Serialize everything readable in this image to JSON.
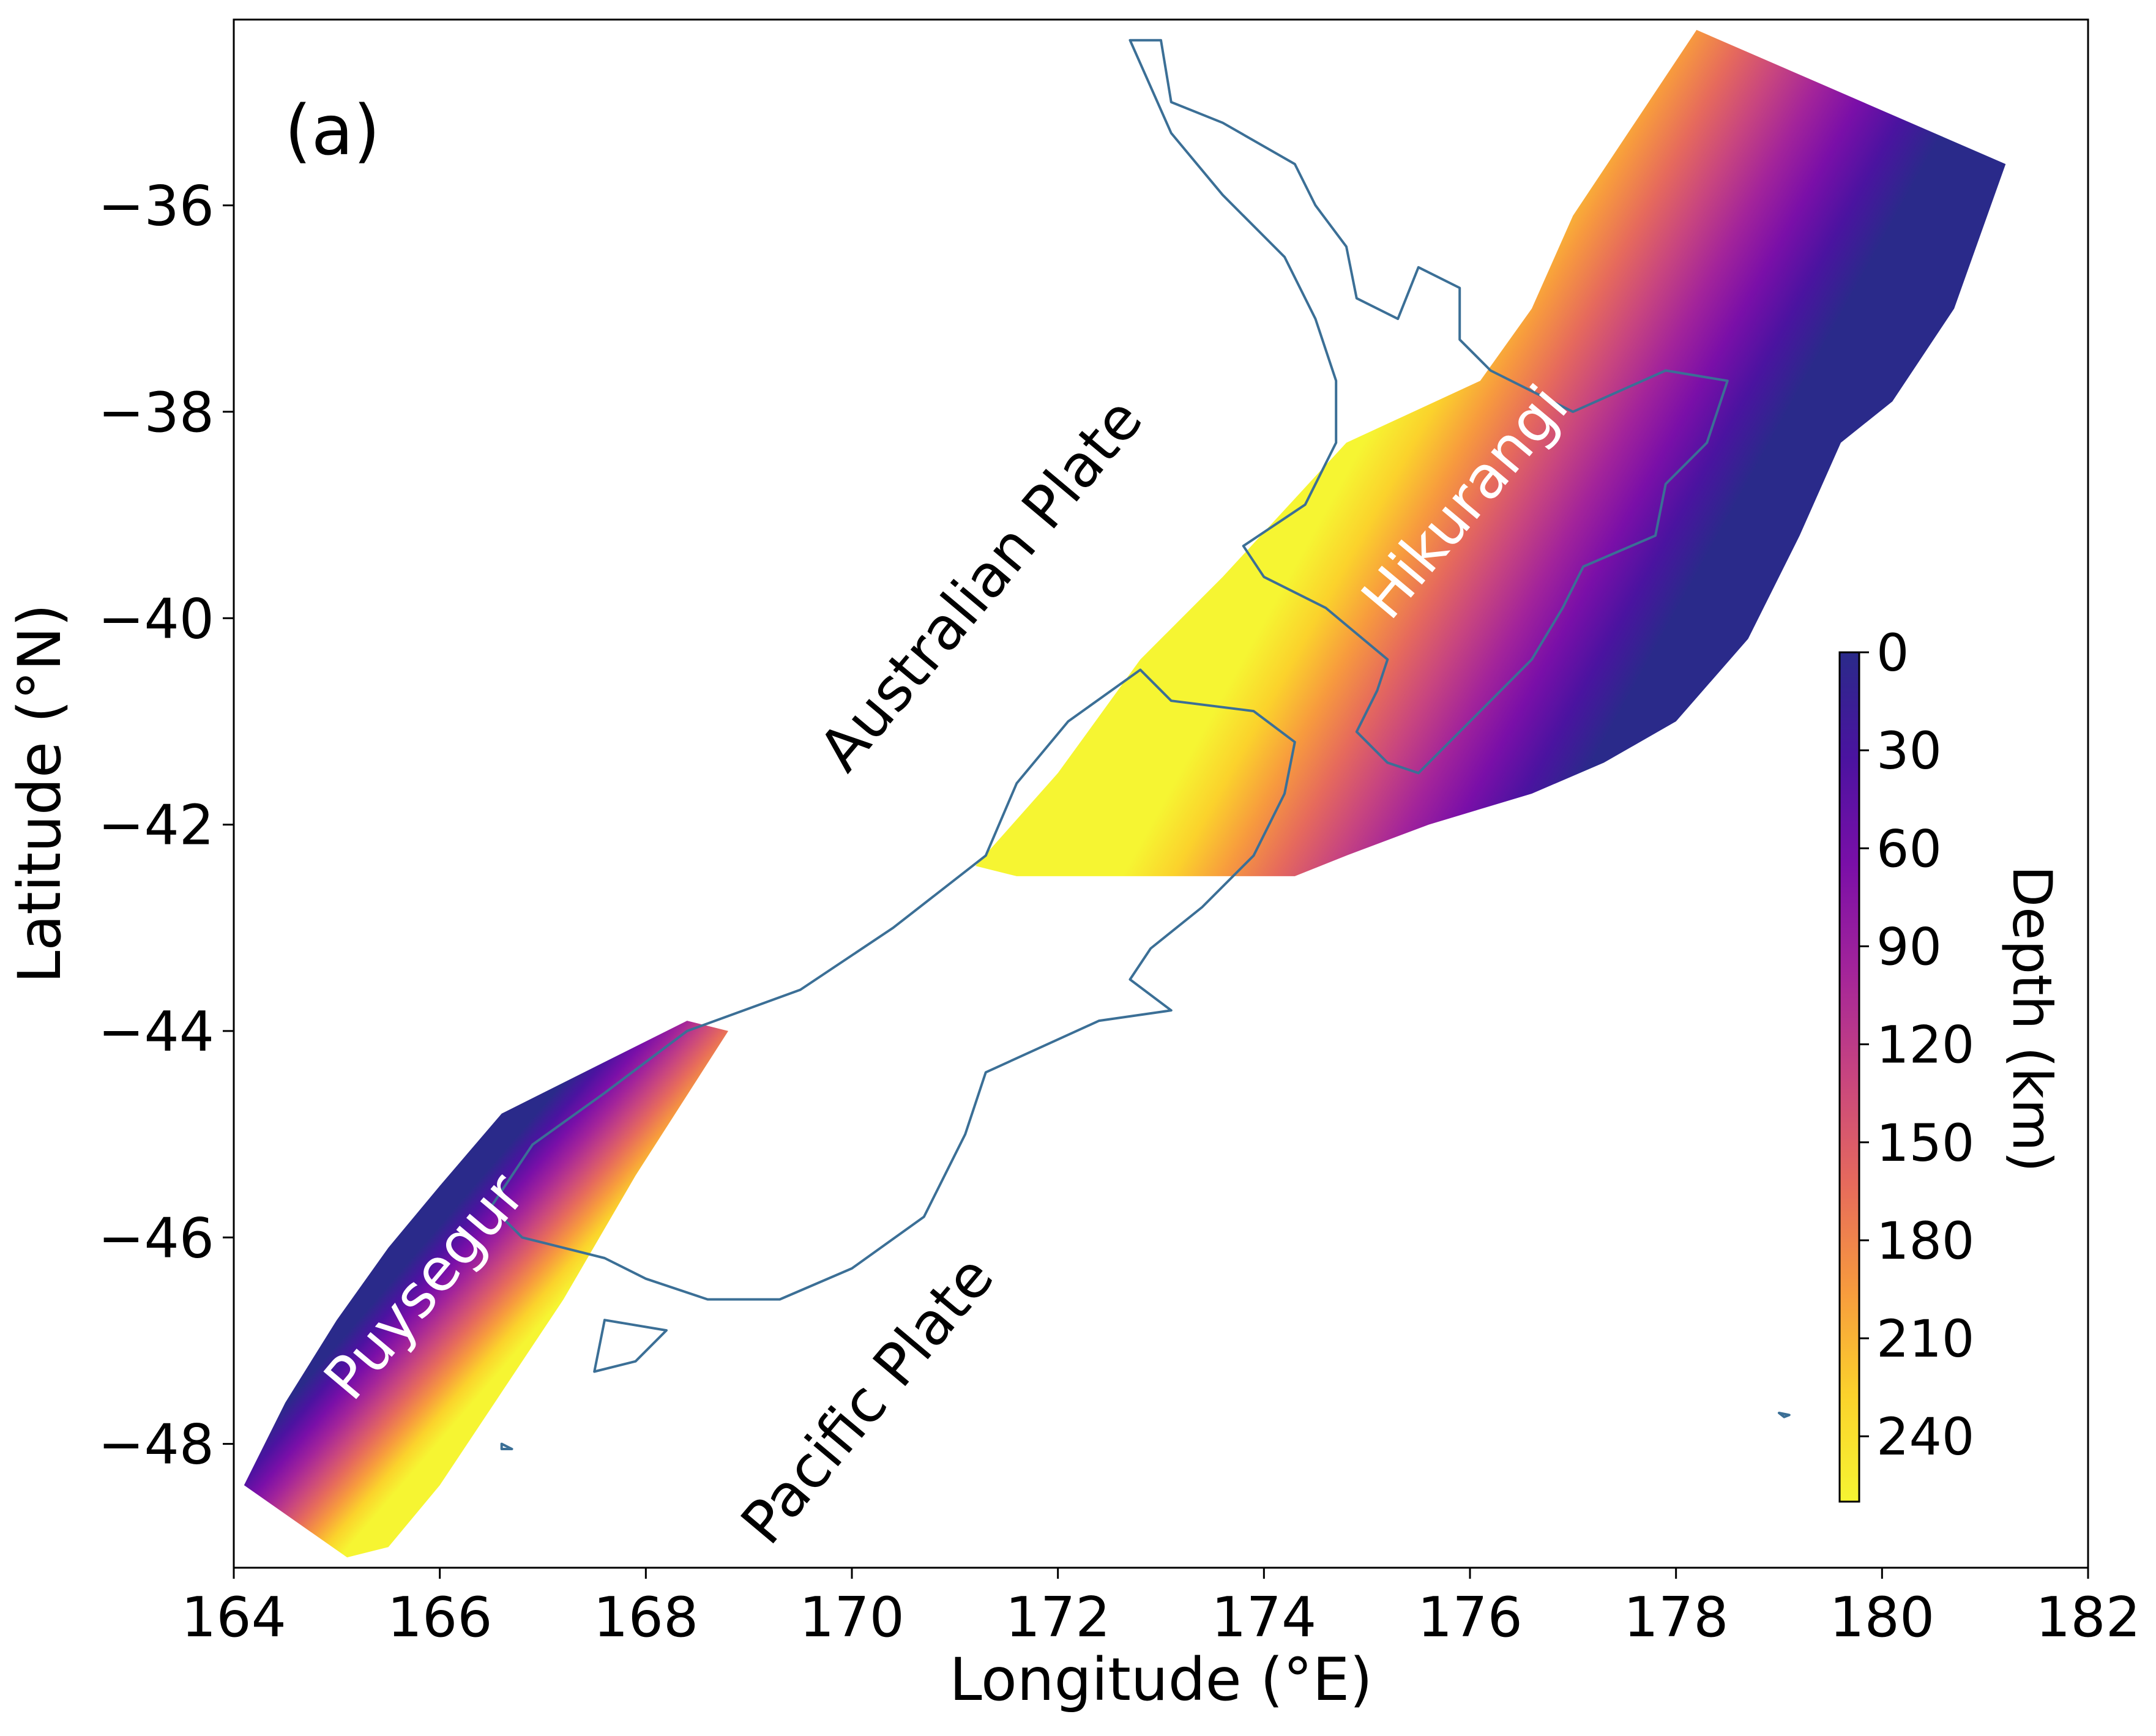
{
  "panel_label": "(a)",
  "colors": {
    "coastline": "#3b6f96",
    "colormap": "plasma",
    "plasma_stops": [
      "#2a2a8a",
      "#4b13a0",
      "#7a0fa8",
      "#a3249a",
      "#c8457f",
      "#e66a5c",
      "#f79a3e",
      "#fbd22c",
      "#f6f532"
    ]
  },
  "chart_data": {
    "type": "map",
    "projection": "equirectangular",
    "xlabel": "Longitude (°E)",
    "ylabel": "Latitude (°N)",
    "xlim": [
      164,
      182
    ],
    "ylim": [
      -49.2,
      -34.2
    ],
    "xticks": [
      164,
      166,
      168,
      170,
      172,
      174,
      176,
      178,
      180,
      182
    ],
    "yticks": [
      -36,
      -38,
      -40,
      -42,
      -44,
      -46,
      -48
    ],
    "xtick_labels": [
      "164",
      "166",
      "168",
      "170",
      "172",
      "174",
      "176",
      "178",
      "180",
      "182"
    ],
    "ytick_labels": [
      "−36",
      "−38",
      "−40",
      "−42",
      "−44",
      "−46",
      "−48"
    ],
    "grid": false,
    "colorbar": {
      "title": "Depth (km)",
      "range": [
        0,
        260
      ],
      "ticks": [
        0,
        30,
        60,
        90,
        120,
        150,
        180,
        210,
        240
      ],
      "tick_labels": [
        "0",
        "30",
        "60",
        "90",
        "120",
        "150",
        "180",
        "210",
        "240"
      ],
      "orientation": "vertical",
      "inverted": true
    },
    "annotations": [
      {
        "text": "Australian Plate",
        "lon": 171.4,
        "lat": -39.8,
        "rotation": -50
      },
      {
        "text": "Pacific Plate",
        "lon": 170.3,
        "lat": -47.7,
        "rotation": -50
      },
      {
        "text": "Hikurangi",
        "lon": 176.1,
        "lat": -39.0,
        "rotation": -50
      },
      {
        "text": "Puysegur",
        "lon": 166.0,
        "lat": -46.6,
        "rotation": -50
      }
    ],
    "slab_regions": [
      {
        "name": "Hikurangi",
        "trench_side_depth_km": 0,
        "max_depth_km": 260,
        "outline": [
          [
            171.2,
            -42.4
          ],
          [
            171.6,
            -42.5
          ],
          [
            172.0,
            -42.5
          ],
          [
            172.5,
            -42.5
          ],
          [
            173.0,
            -42.5
          ],
          [
            173.5,
            -42.5
          ],
          [
            174.0,
            -42.5
          ],
          [
            174.3,
            -42.5
          ],
          [
            174.8,
            -42.3
          ],
          [
            175.6,
            -42.0
          ],
          [
            176.6,
            -41.7
          ],
          [
            177.3,
            -41.4
          ],
          [
            178.0,
            -41.0
          ],
          [
            178.7,
            -40.2
          ],
          [
            179.2,
            -39.2
          ],
          [
            179.6,
            -38.3
          ],
          [
            180.1,
            -37.9
          ],
          [
            180.7,
            -37.0
          ],
          [
            181.2,
            -35.6
          ],
          [
            178.2,
            -34.3
          ],
          [
            177.6,
            -35.2
          ],
          [
            177.0,
            -36.1
          ],
          [
            176.6,
            -37.0
          ],
          [
            176.1,
            -37.7
          ],
          [
            174.8,
            -38.3
          ],
          [
            173.6,
            -39.6
          ],
          [
            172.8,
            -40.4
          ],
          [
            172.0,
            -41.5
          ],
          [
            171.2,
            -42.4
          ]
        ],
        "zero_depth_edge": [
          [
            174.3,
            -42.5
          ],
          [
            174.8,
            -42.3
          ],
          [
            175.6,
            -42.0
          ],
          [
            176.6,
            -41.7
          ],
          [
            177.3,
            -41.4
          ],
          [
            178.0,
            -41.0
          ],
          [
            178.7,
            -40.2
          ],
          [
            179.2,
            -39.2
          ],
          [
            179.6,
            -38.3
          ],
          [
            180.1,
            -37.9
          ],
          [
            180.7,
            -37.0
          ],
          [
            181.2,
            -35.6
          ]
        ],
        "max_depth_edge": [
          [
            171.2,
            -42.4
          ],
          [
            172.0,
            -41.5
          ],
          [
            172.8,
            -40.4
          ],
          [
            173.6,
            -39.6
          ],
          [
            174.8,
            -38.3
          ],
          [
            176.1,
            -37.7
          ],
          [
            176.6,
            -37.0
          ],
          [
            177.0,
            -36.1
          ],
          [
            177.6,
            -35.2
          ],
          [
            178.2,
            -34.3
          ]
        ]
      },
      {
        "name": "Puysegur",
        "trench_side_depth_km": 0,
        "max_depth_km": 260,
        "outline": [
          [
            164.1,
            -48.4
          ],
          [
            165.1,
            -49.1
          ],
          [
            165.5,
            -49.0
          ],
          [
            166.0,
            -48.4
          ],
          [
            166.6,
            -47.5
          ],
          [
            167.2,
            -46.6
          ],
          [
            167.9,
            -45.4
          ],
          [
            168.8,
            -44.0
          ],
          [
            168.4,
            -43.9
          ],
          [
            167.6,
            -44.3
          ],
          [
            166.6,
            -44.8
          ],
          [
            166.0,
            -45.5
          ],
          [
            165.5,
            -46.1
          ],
          [
            165.0,
            -46.8
          ],
          [
            164.5,
            -47.6
          ],
          [
            164.1,
            -48.4
          ]
        ],
        "zero_depth_edge": [
          [
            164.1,
            -48.4
          ],
          [
            164.5,
            -47.6
          ],
          [
            165.0,
            -46.8
          ],
          [
            165.5,
            -46.1
          ],
          [
            166.0,
            -45.5
          ],
          [
            166.6,
            -44.8
          ],
          [
            167.6,
            -44.3
          ],
          [
            168.4,
            -43.9
          ]
        ],
        "max_depth_edge": [
          [
            165.5,
            -49.0
          ],
          [
            166.0,
            -48.4
          ],
          [
            166.6,
            -47.5
          ],
          [
            167.2,
            -46.6
          ],
          [
            167.9,
            -45.4
          ],
          [
            168.8,
            -44.0
          ]
        ]
      }
    ],
    "coastlines": [
      {
        "name": "North Island",
        "points": [
          [
            172.7,
            -34.4
          ],
          [
            173.0,
            -34.4
          ],
          [
            173.1,
            -35.0
          ],
          [
            173.6,
            -35.2
          ],
          [
            174.3,
            -35.6
          ],
          [
            174.5,
            -36.0
          ],
          [
            174.8,
            -36.4
          ],
          [
            174.9,
            -36.9
          ],
          [
            175.3,
            -37.1
          ],
          [
            175.5,
            -36.6
          ],
          [
            175.9,
            -36.8
          ],
          [
            175.9,
            -37.3
          ],
          [
            176.2,
            -37.6
          ],
          [
            177.0,
            -38.0
          ],
          [
            177.9,
            -37.6
          ],
          [
            178.5,
            -37.7
          ],
          [
            178.3,
            -38.3
          ],
          [
            177.9,
            -38.7
          ],
          [
            177.8,
            -39.2
          ],
          [
            177.1,
            -39.5
          ],
          [
            176.9,
            -39.9
          ],
          [
            176.6,
            -40.4
          ],
          [
            176.2,
            -40.8
          ],
          [
            175.5,
            -41.5
          ],
          [
            175.2,
            -41.4
          ],
          [
            174.9,
            -41.1
          ],
          [
            175.1,
            -40.7
          ],
          [
            175.2,
            -40.4
          ],
          [
            174.6,
            -39.9
          ],
          [
            174.0,
            -39.6
          ],
          [
            173.8,
            -39.3
          ],
          [
            174.4,
            -38.9
          ],
          [
            174.7,
            -38.3
          ],
          [
            174.7,
            -37.7
          ],
          [
            174.5,
            -37.1
          ],
          [
            174.2,
            -36.5
          ],
          [
            173.6,
            -35.9
          ],
          [
            173.1,
            -35.3
          ],
          [
            172.7,
            -34.4
          ]
        ]
      },
      {
        "name": "South Island",
        "points": [
          [
            172.8,
            -40.5
          ],
          [
            173.1,
            -40.8
          ],
          [
            173.9,
            -40.9
          ],
          [
            174.3,
            -41.2
          ],
          [
            174.2,
            -41.7
          ],
          [
            173.9,
            -42.3
          ],
          [
            173.4,
            -42.8
          ],
          [
            172.9,
            -43.2
          ],
          [
            172.7,
            -43.5
          ],
          [
            173.1,
            -43.8
          ],
          [
            172.4,
            -43.9
          ],
          [
            171.3,
            -44.4
          ],
          [
            171.1,
            -45.0
          ],
          [
            170.7,
            -45.8
          ],
          [
            170.0,
            -46.3
          ],
          [
            169.3,
            -46.6
          ],
          [
            168.6,
            -46.6
          ],
          [
            168.0,
            -46.4
          ],
          [
            167.6,
            -46.2
          ],
          [
            166.8,
            -46.0
          ],
          [
            166.5,
            -45.7
          ],
          [
            166.9,
            -45.1
          ],
          [
            167.6,
            -44.6
          ],
          [
            168.4,
            -44.0
          ],
          [
            169.5,
            -43.6
          ],
          [
            170.4,
            -43.0
          ],
          [
            171.3,
            -42.3
          ],
          [
            171.6,
            -41.6
          ],
          [
            172.1,
            -41.0
          ],
          [
            172.8,
            -40.5
          ]
        ]
      },
      {
        "name": "Stewart Island",
        "points": [
          [
            167.6,
            -46.8
          ],
          [
            168.2,
            -46.9
          ],
          [
            167.9,
            -47.2
          ],
          [
            167.5,
            -47.3
          ],
          [
            167.6,
            -46.8
          ]
        ]
      },
      {
        "name": "Islet",
        "points": [
          [
            166.6,
            -48.0
          ],
          [
            166.7,
            -48.05
          ],
          [
            166.6,
            -48.05
          ],
          [
            166.6,
            -48.0
          ]
        ]
      },
      {
        "name": "Islet",
        "points": [
          [
            179.0,
            -47.7
          ],
          [
            179.1,
            -47.72
          ],
          [
            179.05,
            -47.74
          ],
          [
            179.0,
            -47.7
          ]
        ]
      }
    ]
  }
}
